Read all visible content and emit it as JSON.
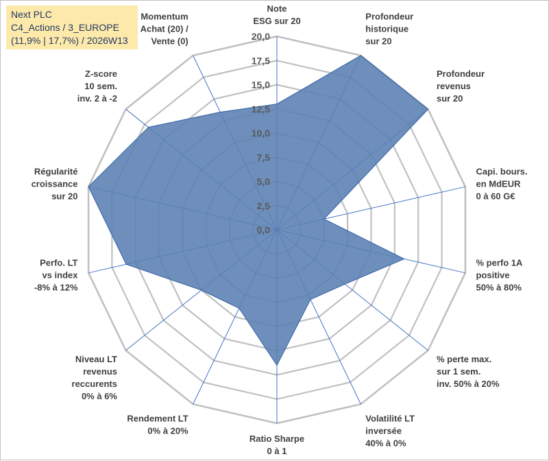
{
  "title": {
    "line1": "Next PLC",
    "line2": "C4_Actions / 3_EUROPE",
    "line3": "(11,9% | 17,7%) / 2026W13"
  },
  "colors": {
    "grid": "#c0c0c0",
    "spoke": "#4472c4",
    "fill": "#5a7fb3",
    "stroke": "#3f6aa8",
    "label": "#404040",
    "title_bg": "#fde9a9",
    "title_text": "#1f3864"
  },
  "chart_data": {
    "type": "radar",
    "rmin": 0,
    "rmax": 20,
    "ticks": [
      "0,0",
      "2,5",
      "5,0",
      "7,5",
      "10,0",
      "12,5",
      "15,0",
      "17,5",
      "20,0"
    ],
    "grid": true,
    "categories": [
      [
        "Note",
        "ESG sur 20"
      ],
      [
        "Profondeur",
        "historique",
        "sur 20"
      ],
      [
        "Profondeur",
        "revenus",
        "sur 20"
      ],
      [
        "Capi. bours.",
        "en MdEUR",
        "0 à 60 G€"
      ],
      [
        "% perfo 1A",
        "positive",
        "50% à 80%"
      ],
      [
        "% perte max.",
        "sur 1 sem.",
        "inv. 50% à 20%"
      ],
      [
        "Volatilité LT",
        "inversée",
        "40% à 0%"
      ],
      [
        "Ratio Sharpe",
        "0 à 1"
      ],
      [
        "Rendement LT",
        "0% à 20%"
      ],
      [
        "Niveau LT",
        "revenus",
        "reccurents",
        "0% à 6%"
      ],
      [
        "Perfo. LT",
        "vs index",
        "-8% à 12%"
      ],
      [
        "Régularité",
        "croissance",
        "sur 20"
      ],
      [
        "Z-score",
        "10 sem.",
        "inv. 2 à -2"
      ],
      [
        "Momentum",
        "Achat (20) /",
        "Vente (0)"
      ]
    ],
    "series": [
      {
        "name": "Next PLC",
        "values": [
          13,
          20,
          20,
          5,
          13.5,
          9,
          8,
          14,
          9,
          10,
          16,
          20,
          17,
          13.5
        ]
      }
    ]
  }
}
